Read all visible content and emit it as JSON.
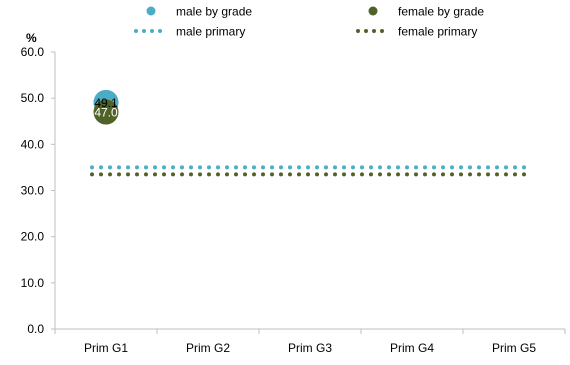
{
  "chart_data": {
    "type": "scatter",
    "ylabel": "%",
    "categories": [
      "Prim G1",
      "Prim G2",
      "Prim G3",
      "Prim G4",
      "Prim G5"
    ],
    "ylim": [
      0,
      60
    ],
    "yticks": [
      "0.0",
      "10.0",
      "20.0",
      "30.0",
      "40.0",
      "50.0",
      "60.0"
    ],
    "legend_position": "top",
    "grid": false,
    "series": [
      {
        "name": "male by grade",
        "kind": "marker",
        "color": "#4bacc6",
        "points": [
          {
            "category": "Prim G1",
            "value": 49.1,
            "label": "49.1"
          }
        ]
      },
      {
        "name": "female by grade",
        "kind": "marker",
        "color": "#4f6228",
        "points": [
          {
            "category": "Prim G1",
            "value": 47.0,
            "label": "47.0"
          }
        ]
      },
      {
        "name": "male primary",
        "kind": "dotted-line",
        "color": "#4bacc6",
        "value": 35.0
      },
      {
        "name": "female primary",
        "kind": "dotted-line",
        "color": "#4f6228",
        "value": 33.5
      }
    ]
  }
}
